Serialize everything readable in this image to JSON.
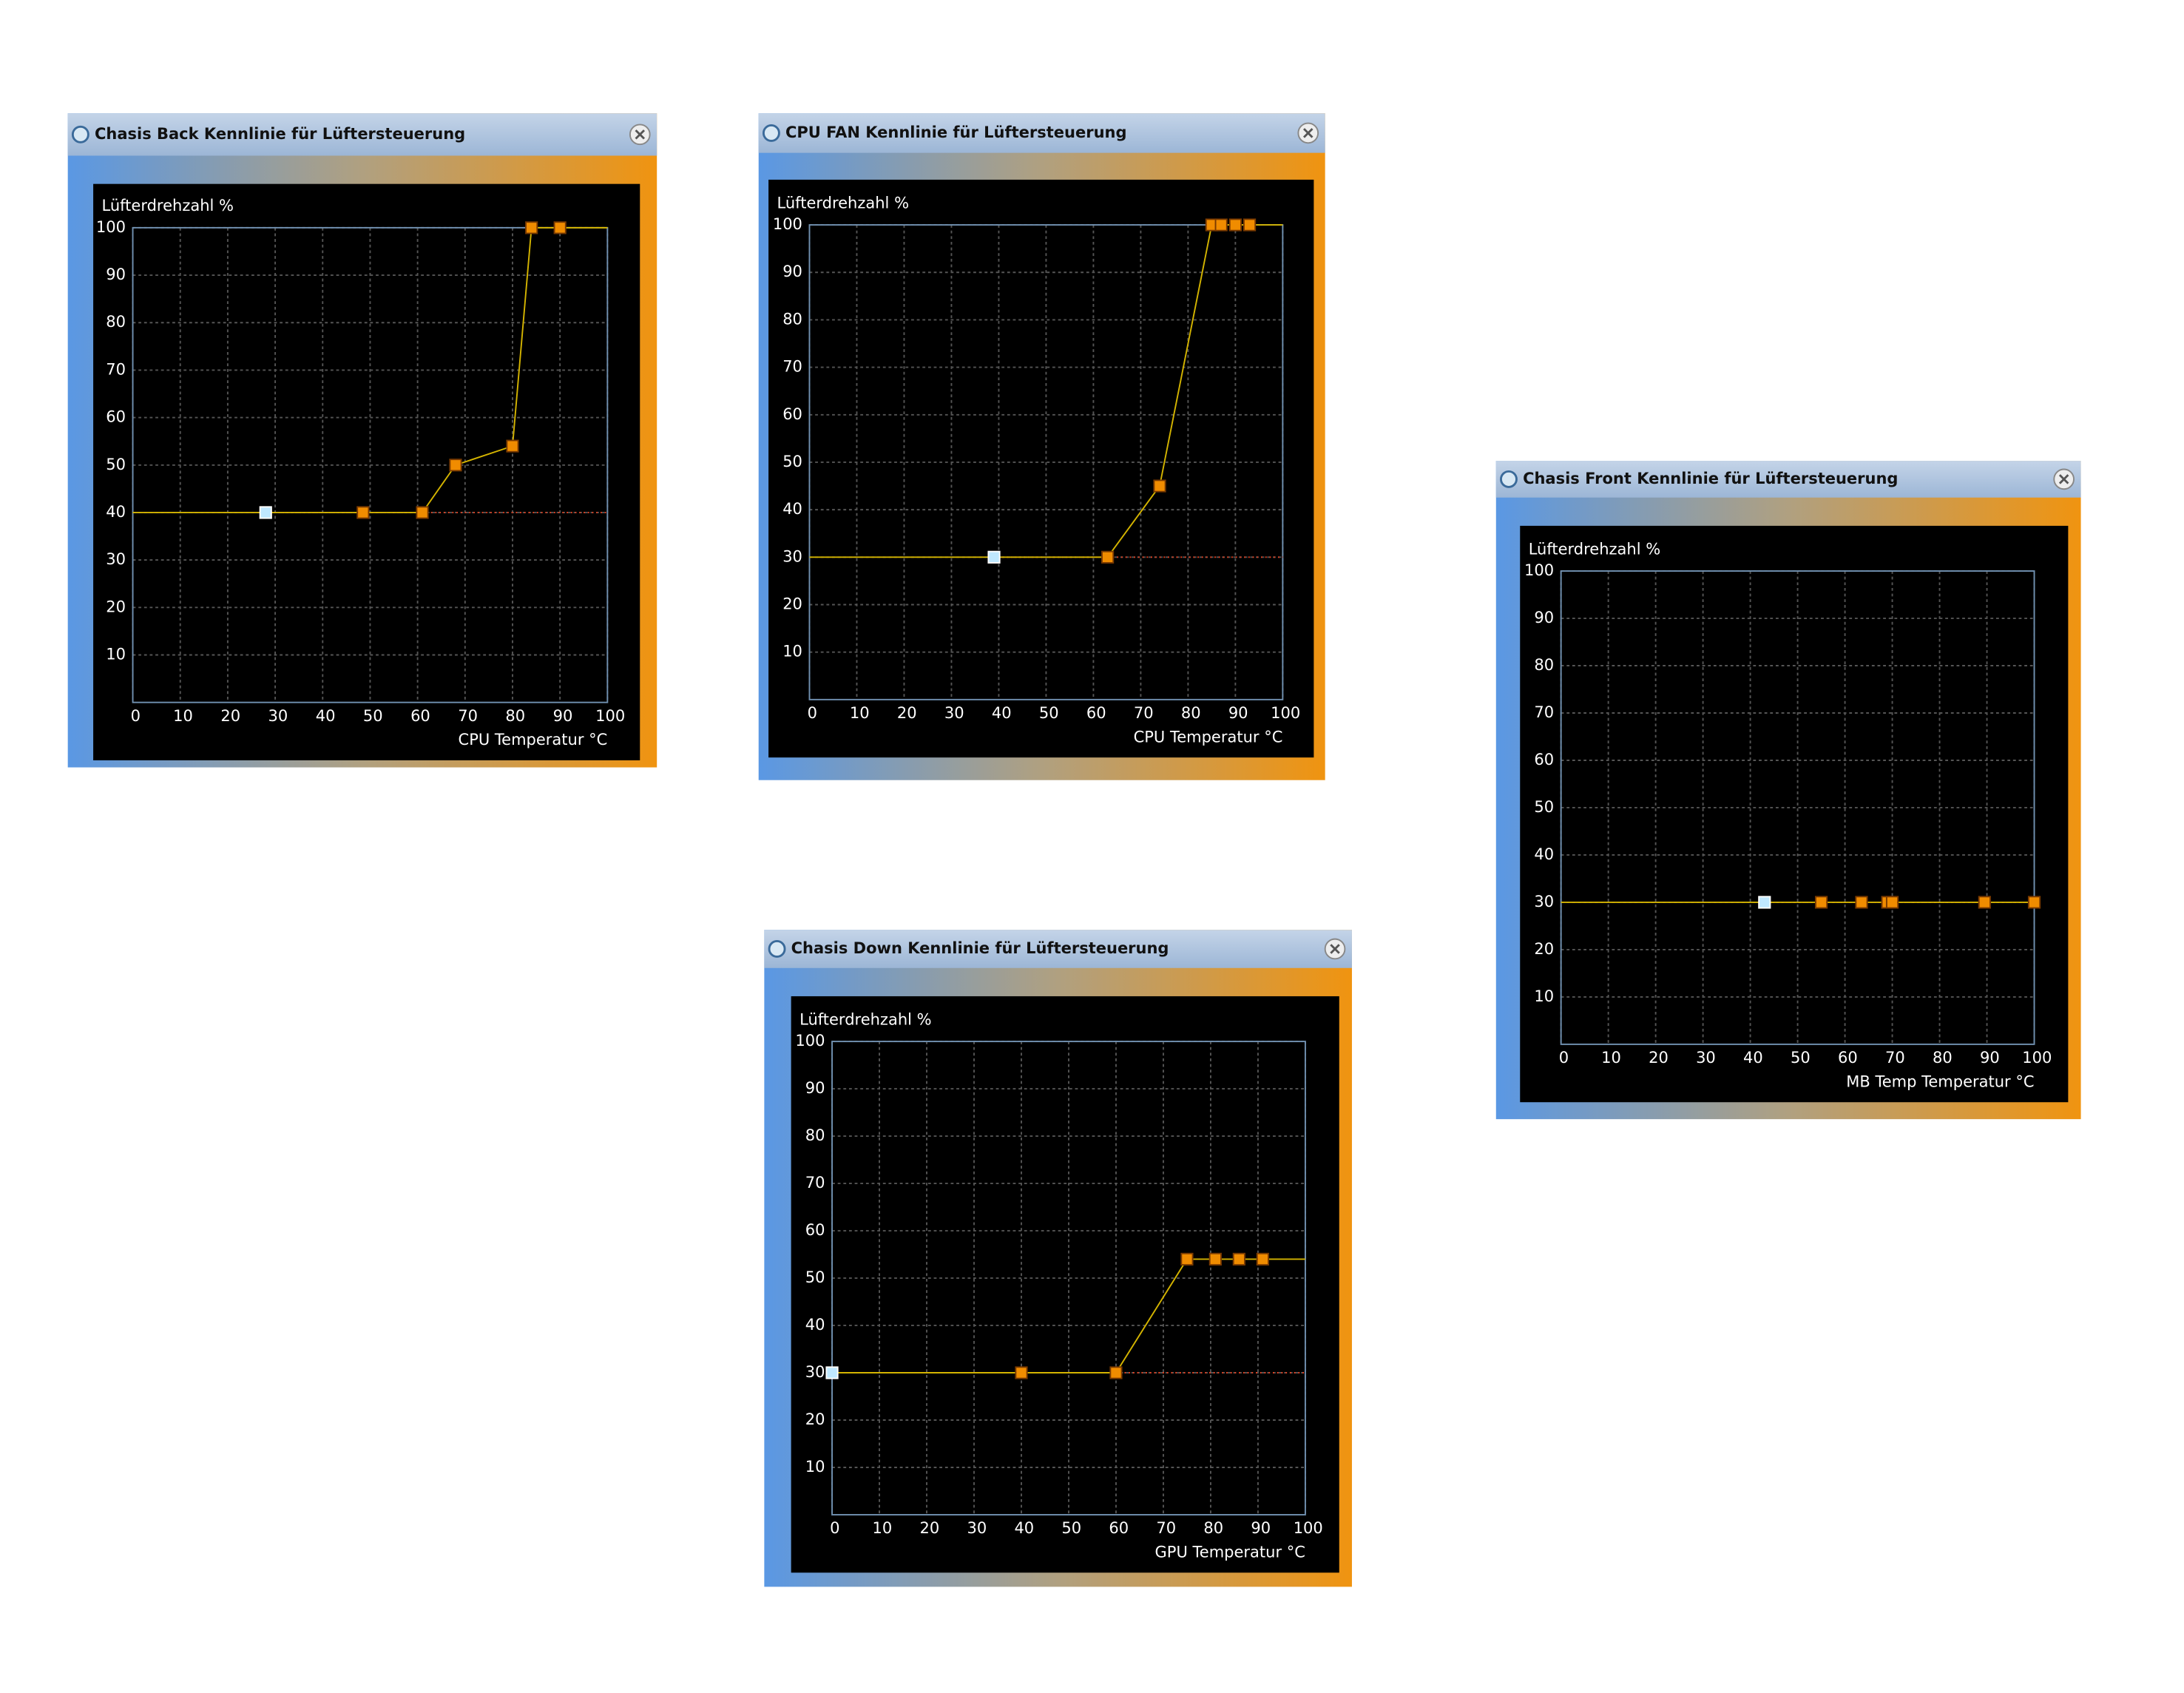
{
  "chart_data": [
    {
      "type": "line",
      "title": "Chasis Back Kennlinie für Lüftersteuerung",
      "y_label": "Lüfterdrehzahl %",
      "x_label": "CPU Temperatur °C",
      "xlim": [
        0,
        100
      ],
      "ylim": [
        0,
        100
      ],
      "xticks": [
        0,
        10,
        20,
        30,
        40,
        50,
        60,
        70,
        80,
        90,
        100
      ],
      "yticks": [
        10,
        20,
        30,
        40,
        50,
        60,
        70,
        80,
        90,
        100
      ],
      "grid": true,
      "line_color": "#d4b400",
      "series": [
        {
          "color": "#f08c00",
          "x": [
            48.5,
            61,
            68,
            80,
            84,
            90
          ],
          "values": [
            40,
            40,
            50,
            54,
            100,
            100
          ]
        },
        {
          "color": "#bfe8ff",
          "x": [
            28
          ],
          "values": [
            40
          ]
        }
      ]
    },
    {
      "type": "line",
      "title": "CPU FAN Kennlinie für Lüftersteuerung",
      "y_label": "Lüfterdrehzahl %",
      "x_label": "CPU Temperatur °C",
      "xlim": [
        0,
        100
      ],
      "ylim": [
        0,
        100
      ],
      "xticks": [
        0,
        10,
        20,
        30,
        40,
        50,
        60,
        70,
        80,
        90,
        100
      ],
      "yticks": [
        10,
        20,
        30,
        40,
        50,
        60,
        70,
        80,
        90,
        100
      ],
      "grid": true,
      "line_color": "#d4b400",
      "series": [
        {
          "color": "#f08c00",
          "x": [
            63,
            74,
            85,
            87,
            90,
            93
          ],
          "values": [
            30,
            45,
            100,
            100,
            100,
            100
          ]
        },
        {
          "color": "#bfe8ff",
          "x": [
            39
          ],
          "values": [
            30
          ]
        }
      ]
    },
    {
      "type": "line",
      "title": "Chasis Front Kennlinie für Lüftersteuerung",
      "y_label": "Lüfterdrehzahl %",
      "x_label": "MB Temp Temperatur °C",
      "xlim": [
        0,
        100
      ],
      "ylim": [
        0,
        100
      ],
      "xticks": [
        0,
        10,
        20,
        30,
        40,
        50,
        60,
        70,
        80,
        90,
        100
      ],
      "yticks": [
        10,
        20,
        30,
        40,
        50,
        60,
        70,
        80,
        90,
        100
      ],
      "grid": true,
      "line_color": "#d4b400",
      "series": [
        {
          "color": "#f08c00",
          "x": [
            55,
            63.5,
            69,
            70,
            89.5,
            100
          ],
          "values": [
            30,
            30,
            30,
            30,
            30,
            30
          ]
        },
        {
          "color": "#bfe8ff",
          "x": [
            43
          ],
          "values": [
            30
          ]
        }
      ]
    },
    {
      "type": "line",
      "title": "Chasis Down Kennlinie für Lüftersteuerung",
      "y_label": "Lüfterdrehzahl %",
      "x_label": "GPU Temperatur °C",
      "xlim": [
        0,
        100
      ],
      "ylim": [
        0,
        100
      ],
      "xticks": [
        0,
        10,
        20,
        30,
        40,
        50,
        60,
        70,
        80,
        90,
        100
      ],
      "yticks": [
        10,
        20,
        30,
        40,
        50,
        60,
        70,
        80,
        90,
        100
      ],
      "grid": true,
      "line_color": "#d4b400",
      "series": [
        {
          "color": "#f08c00",
          "x": [
            40,
            60,
            75,
            81,
            86,
            91
          ],
          "values": [
            30,
            30,
            54,
            54,
            54,
            54
          ]
        },
        {
          "color": "#bfe8ff",
          "x": [
            0
          ],
          "values": [
            30
          ]
        }
      ]
    }
  ]
}
